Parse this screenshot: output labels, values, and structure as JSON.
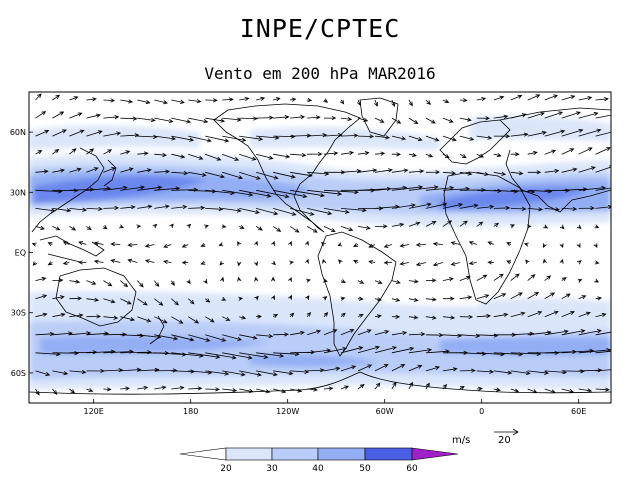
{
  "header": {
    "title": "INPE/CPTEC",
    "subtitle": "Vento em 200 hPa MAR2016"
  },
  "map": {
    "lat_labels": [
      "60N",
      "30N",
      "EQ",
      "30S",
      "60S"
    ],
    "lon_labels": [
      "120E",
      "180",
      "120W",
      "60W",
      "0",
      "60E"
    ],
    "lat_values": [
      60,
      30,
      0,
      -30,
      -60
    ],
    "lon_values": [
      120,
      180,
      240,
      300,
      360,
      420
    ]
  },
  "legend": {
    "unit": "m/s",
    "reference_vector": "20",
    "levels": [
      "20",
      "30",
      "40",
      "50",
      "60"
    ],
    "colors": [
      "#ffffff",
      "#dbe6fb",
      "#b9cdf8",
      "#93aef4",
      "#6b87ee",
      "#4a5fe4",
      "#a020c8"
    ]
  }
}
